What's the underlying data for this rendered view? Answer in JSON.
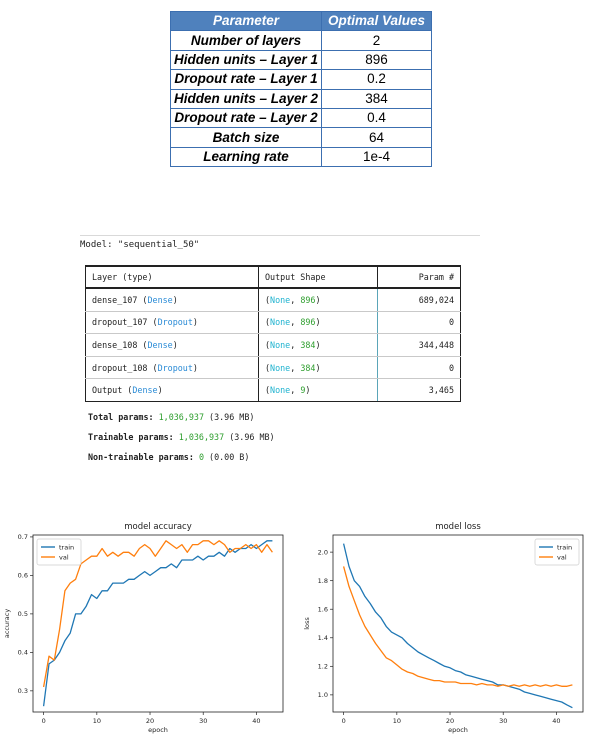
{
  "param_table": {
    "header": [
      "Parameter",
      "Optimal Values"
    ],
    "rows": [
      [
        "Number of layers",
        "2"
      ],
      [
        "Hidden units – Layer 1",
        "896"
      ],
      [
        "Dropout rate – Layer 1",
        "0.2"
      ],
      [
        "Hidden units – Layer 2",
        "384"
      ],
      [
        "Dropout rate – Layer 2",
        "0.4"
      ],
      [
        "Batch size",
        "64"
      ],
      [
        "Learning rate",
        "1e-4"
      ]
    ],
    "colors": {
      "header_bg": "#4f81bd",
      "border": "#3c6fb0"
    }
  },
  "model_summary": {
    "title": "Model: \"sequential_50\"",
    "headers": [
      "Layer (type)",
      "Output Shape",
      "Param #"
    ],
    "rows": [
      {
        "name": "dense_107",
        "type": "Dense",
        "shape_none": "None",
        "shape_dim": "896",
        "params": "689,024"
      },
      {
        "name": "dropout_107",
        "type": "Dropout",
        "shape_none": "None",
        "shape_dim": "896",
        "params": "0"
      },
      {
        "name": "dense_108",
        "type": "Dense",
        "shape_none": "None",
        "shape_dim": "384",
        "params": "344,448"
      },
      {
        "name": "dropout_108",
        "type": "Dropout",
        "shape_none": "None",
        "shape_dim": "384",
        "params": "0"
      },
      {
        "name": "Output",
        "type": "Dense",
        "shape_none": "None",
        "shape_dim": "9",
        "params": "3,465"
      }
    ],
    "total": {
      "label": "Total params:",
      "value": "1,036,937",
      "size": "(3.96 MB)"
    },
    "trainable": {
      "label": "Trainable params:",
      "value": "1,036,937",
      "size": "(3.96 MB)"
    },
    "non_trainable": {
      "label": "Non-trainable params:",
      "value": "0",
      "size": "(0.00 B)"
    }
  },
  "chart_data": [
    {
      "type": "line",
      "title": "model accuracy",
      "xlabel": "epoch",
      "ylabel": "accuracy",
      "xlim": [
        -2,
        45
      ],
      "ylim": [
        0.245,
        0.705
      ],
      "xticks": [
        0,
        10,
        20,
        30,
        40
      ],
      "yticks": [
        0.3,
        0.4,
        0.5,
        0.6,
        0.7
      ],
      "legend": "top-left",
      "x": [
        0,
        1,
        2,
        3,
        4,
        5,
        6,
        7,
        8,
        9,
        10,
        11,
        12,
        13,
        14,
        15,
        16,
        17,
        18,
        19,
        20,
        21,
        22,
        23,
        24,
        25,
        26,
        27,
        28,
        29,
        30,
        31,
        32,
        33,
        34,
        35,
        36,
        37,
        38,
        39,
        40,
        41,
        42,
        43
      ],
      "series": [
        {
          "name": "train",
          "color": "#1f77b4",
          "values": [
            0.26,
            0.37,
            0.38,
            0.4,
            0.43,
            0.45,
            0.5,
            0.5,
            0.52,
            0.55,
            0.54,
            0.56,
            0.56,
            0.58,
            0.58,
            0.58,
            0.59,
            0.59,
            0.6,
            0.61,
            0.6,
            0.61,
            0.62,
            0.62,
            0.63,
            0.62,
            0.64,
            0.64,
            0.64,
            0.65,
            0.64,
            0.65,
            0.65,
            0.66,
            0.65,
            0.67,
            0.66,
            0.67,
            0.67,
            0.68,
            0.67,
            0.68,
            0.69,
            0.69
          ]
        },
        {
          "name": "val",
          "color": "#ff7f0e",
          "values": [
            0.31,
            0.39,
            0.38,
            0.46,
            0.56,
            0.58,
            0.59,
            0.63,
            0.64,
            0.65,
            0.65,
            0.67,
            0.65,
            0.66,
            0.65,
            0.66,
            0.66,
            0.65,
            0.67,
            0.68,
            0.67,
            0.65,
            0.67,
            0.69,
            0.68,
            0.67,
            0.68,
            0.66,
            0.68,
            0.68,
            0.69,
            0.69,
            0.68,
            0.69,
            0.68,
            0.66,
            0.67,
            0.67,
            0.68,
            0.67,
            0.68,
            0.66,
            0.68,
            0.66
          ]
        }
      ]
    },
    {
      "type": "line",
      "title": "model loss",
      "xlabel": "epoch",
      "ylabel": "loss",
      "xlim": [
        -2,
        45
      ],
      "ylim": [
        0.88,
        2.12
      ],
      "xticks": [
        0,
        10,
        20,
        30,
        40
      ],
      "yticks": [
        1.0,
        1.2,
        1.4,
        1.6,
        1.8,
        2.0
      ],
      "legend": "top-right",
      "x": [
        0,
        1,
        2,
        3,
        4,
        5,
        6,
        7,
        8,
        9,
        10,
        11,
        12,
        13,
        14,
        15,
        16,
        17,
        18,
        19,
        20,
        21,
        22,
        23,
        24,
        25,
        26,
        27,
        28,
        29,
        30,
        31,
        32,
        33,
        34,
        35,
        36,
        37,
        38,
        39,
        40,
        41,
        42,
        43
      ],
      "series": [
        {
          "name": "train",
          "color": "#1f77b4",
          "values": [
            2.06,
            1.9,
            1.8,
            1.76,
            1.69,
            1.64,
            1.58,
            1.54,
            1.48,
            1.44,
            1.42,
            1.4,
            1.36,
            1.33,
            1.3,
            1.28,
            1.26,
            1.24,
            1.22,
            1.2,
            1.19,
            1.17,
            1.16,
            1.14,
            1.13,
            1.12,
            1.11,
            1.1,
            1.09,
            1.07,
            1.07,
            1.06,
            1.05,
            1.04,
            1.02,
            1.01,
            1.0,
            0.99,
            0.98,
            0.97,
            0.96,
            0.95,
            0.93,
            0.91
          ]
        },
        {
          "name": "val",
          "color": "#ff7f0e",
          "values": [
            1.9,
            1.76,
            1.66,
            1.56,
            1.48,
            1.42,
            1.36,
            1.31,
            1.26,
            1.24,
            1.21,
            1.18,
            1.16,
            1.15,
            1.13,
            1.12,
            1.11,
            1.1,
            1.1,
            1.09,
            1.09,
            1.09,
            1.08,
            1.08,
            1.08,
            1.07,
            1.08,
            1.07,
            1.07,
            1.06,
            1.07,
            1.06,
            1.07,
            1.06,
            1.07,
            1.06,
            1.07,
            1.06,
            1.07,
            1.06,
            1.07,
            1.06,
            1.06,
            1.07
          ]
        }
      ]
    }
  ]
}
